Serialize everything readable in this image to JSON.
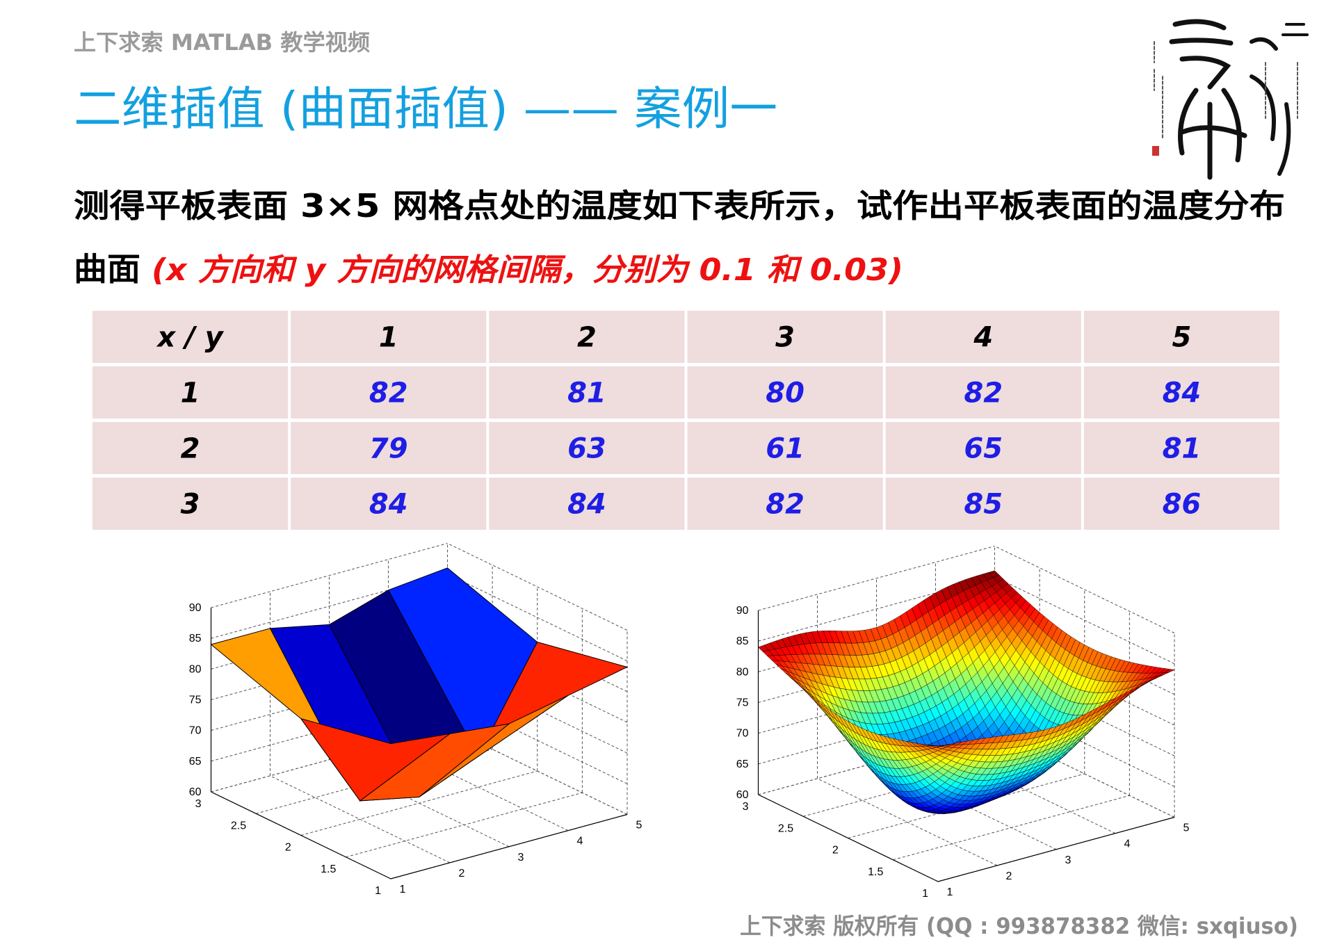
{
  "header": {
    "title": "上下求索 MATLAB 教学视频"
  },
  "title": "二维插值 (曲面插值) —— 案例一",
  "text": {
    "line1": "测得平板表面  3×5  网格点处的温度如下表所示，试作出平板表面的温度分布",
    "line2": "曲面",
    "note": "(x 方向和 y 方向的网格间隔，分别为 0.1 和 0.03)"
  },
  "table": {
    "header": [
      "x / y",
      1,
      2,
      3,
      4,
      5
    ],
    "rows": [
      [
        1,
        82,
        81,
        80,
        82,
        84
      ],
      [
        2,
        79,
        63,
        61,
        65,
        81
      ],
      [
        3,
        84,
        84,
        82,
        85,
        86
      ]
    ]
  },
  "plots": [
    {
      "type": "surface",
      "shading": "faceted",
      "xlim": [
        1,
        5
      ],
      "ylim": [
        1,
        3
      ],
      "zlim": [
        60,
        90
      ],
      "xticks": [
        1,
        2,
        3,
        4,
        5
      ],
      "yticks": [
        1,
        1.5,
        2,
        2.5,
        3
      ],
      "zticks": [
        60,
        65,
        70,
        75,
        80,
        85,
        90
      ],
      "grid": true
    },
    {
      "type": "surface",
      "shading": "interp",
      "xlim": [
        1,
        5
      ],
      "ylim": [
        1,
        3
      ],
      "zlim": [
        60,
        90
      ],
      "xticks": [
        1,
        2,
        3,
        4,
        5
      ],
      "yticks": [
        1,
        1.5,
        2,
        2.5,
        3
      ],
      "zticks": [
        60,
        65,
        70,
        75,
        80,
        85,
        90
      ],
      "grid": true
    }
  ],
  "footer": "上下求索  版权所有  (QQ : 993878382    微信: sxqiuso)"
}
